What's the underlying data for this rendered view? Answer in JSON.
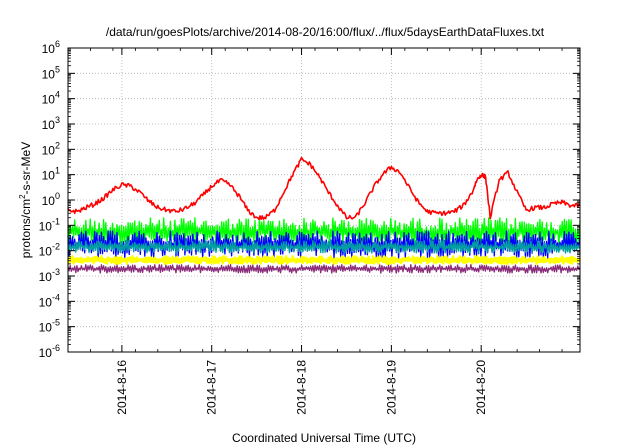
{
  "chart_data": {
    "type": "line",
    "title": "/data/run/goesPlots/archive/2014-08-20/16:00/flux/../flux/5daysEarthDataFluxes.txt",
    "xlabel": "Coordinated Universal Time (UTC)",
    "ylabel": {
      "prefix": "protons/cm",
      "sup": "2",
      "suffix": "-s-sr-MeV"
    },
    "xlim": [
      0,
      5.7
    ],
    "x_ticks": [
      {
        "x": 0.6,
        "label": "2014-8-16"
      },
      {
        "x": 1.6,
        "label": "2014-8-17"
      },
      {
        "x": 2.6,
        "label": "2014-8-18"
      },
      {
        "x": 3.6,
        "label": "2014-8-19"
      },
      {
        "x": 4.6,
        "label": "2014-8-20"
      }
    ],
    "y_scale": "log",
    "ylim_exp": [
      -6,
      6
    ],
    "y_tick_base": "10",
    "y_tick_exponents": [
      "6",
      "5",
      "4",
      "3",
      "2",
      "1",
      "0",
      "-1",
      "-2",
      "-3",
      "-4",
      "-5",
      "-6"
    ],
    "grid": true,
    "legend": "none",
    "series": [
      {
        "color": "#ff0000",
        "x": [
          0,
          0.1,
          0.2,
          0.3,
          0.4,
          0.5,
          0.6,
          0.7,
          0.8,
          0.9,
          1.0,
          1.1,
          1.2,
          1.3,
          1.4,
          1.5,
          1.6,
          1.7,
          1.8,
          1.9,
          2.0,
          2.1,
          2.2,
          2.3,
          2.4,
          2.5,
          2.6,
          2.7,
          2.8,
          2.9,
          3.0,
          3.1,
          3.2,
          3.3,
          3.4,
          3.5,
          3.6,
          3.7,
          3.8,
          3.9,
          4.0,
          4.1,
          4.2,
          4.3,
          4.4,
          4.5,
          4.55,
          4.6,
          4.65,
          4.7,
          4.8,
          4.9,
          5.0,
          5.1,
          5.2,
          5.3,
          5.4,
          5.5,
          5.6,
          5.7
        ],
        "y": [
          0.4,
          0.35,
          0.5,
          0.7,
          1.2,
          2.5,
          4,
          3.5,
          2,
          0.9,
          0.5,
          0.4,
          0.35,
          0.45,
          0.7,
          1.5,
          3.5,
          6,
          4,
          1.5,
          0.4,
          0.2,
          0.2,
          0.4,
          2,
          10,
          40,
          25,
          8,
          2,
          0.6,
          0.2,
          0.2,
          0.7,
          3,
          10,
          20,
          12,
          3,
          0.8,
          0.35,
          0.3,
          0.3,
          0.35,
          0.6,
          2,
          6,
          10,
          8,
          0.2,
          6,
          12,
          2,
          0.4,
          0.5,
          0.5,
          0.7,
          0.8,
          0.6,
          0.6
        ]
      },
      {
        "color": "#00ff00",
        "low": 0.015,
        "high": 0.2
      },
      {
        "color": "#0000ff",
        "low": 0.005,
        "high": 0.06
      },
      {
        "color": "#00a0a0",
        "low": 0.008,
        "high": 0.025
      },
      {
        "color": "#ffff00",
        "low": 0.003,
        "high": 0.006
      },
      {
        "color": "#8b2d7a",
        "low": 0.0013,
        "high": 0.0028
      }
    ]
  }
}
